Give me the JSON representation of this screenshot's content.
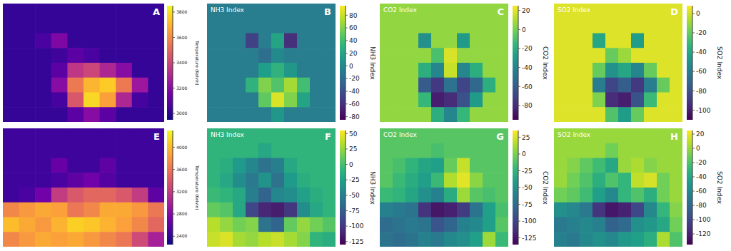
{
  "chart_data": [
    {
      "type": "heatmap",
      "label": "A",
      "color": "plasma",
      "tick_labels": false,
      "colorbar": {
        "label": "Temperature (Kelvin)",
        "range": [
          2950,
          3850
        ],
        "ticks": [
          3000,
          3200,
          3400,
          3600,
          3800
        ]
      },
      "cells": [
        [
          3020,
          3020,
          3020,
          3020,
          3020,
          3020,
          3020,
          3020,
          3020,
          3020
        ],
        [
          3020,
          3020,
          3020,
          3020,
          3020,
          3020,
          3020,
          3020,
          3020,
          3020
        ],
        [
          3020,
          3020,
          3060,
          3180,
          3020,
          3020,
          3020,
          3020,
          3020,
          3020
        ],
        [
          3020,
          3020,
          3020,
          3040,
          3100,
          3060,
          3020,
          3020,
          3020,
          3020
        ],
        [
          3020,
          3020,
          3020,
          3100,
          3350,
          3400,
          3300,
          3200,
          3020,
          3020
        ],
        [
          3020,
          3020,
          3020,
          3200,
          3550,
          3700,
          3750,
          3550,
          3250,
          3020
        ],
        [
          3020,
          3020,
          3020,
          3050,
          3450,
          3780,
          3650,
          3300,
          3050,
          3020
        ],
        [
          3020,
          3020,
          3020,
          3020,
          3100,
          3200,
          3100,
          3020,
          3020,
          3020
        ]
      ]
    },
    {
      "type": "heatmap",
      "label": "B",
      "title": "NH3 Index",
      "color": "viridis",
      "tick_labels": false,
      "colorbar": {
        "label": "NH3 Index",
        "range": [
          -85,
          95
        ],
        "ticks": [
          -80,
          -60,
          -40,
          -20,
          0,
          20,
          40,
          60,
          80
        ]
      },
      "cells": [
        [
          -8,
          -8,
          -8,
          -8,
          -8,
          -8,
          -8,
          -8,
          -8,
          -8
        ],
        [
          -8,
          -8,
          -8,
          -8,
          -8,
          -8,
          -8,
          -8,
          -8,
          -8
        ],
        [
          -8,
          -8,
          -8,
          -50,
          -8,
          20,
          -60,
          -8,
          -8,
          -8
        ],
        [
          -8,
          -8,
          -8,
          -8,
          -20,
          0,
          -8,
          -8,
          -8,
          -8
        ],
        [
          -8,
          -8,
          -8,
          -8,
          15,
          30,
          10,
          -8,
          -8,
          -8
        ],
        [
          -8,
          -8,
          -8,
          30,
          60,
          45,
          70,
          40,
          -8,
          -8
        ],
        [
          -8,
          -8,
          -8,
          -8,
          50,
          85,
          60,
          20,
          -8,
          -8
        ],
        [
          -8,
          -8,
          -8,
          -8,
          -8,
          10,
          -8,
          -8,
          -8,
          -8
        ]
      ]
    },
    {
      "type": "heatmap",
      "label": "C",
      "title": "CO2 Index",
      "color": "viridis",
      "tick_labels": false,
      "colorbar": {
        "label": "CO2 Index",
        "range": [
          -95,
          25
        ],
        "ticks": [
          -80,
          -60,
          -40,
          -20,
          0,
          20
        ]
      },
      "cells": [
        [
          5,
          5,
          5,
          5,
          5,
          5,
          5,
          5,
          5,
          5
        ],
        [
          5,
          5,
          5,
          5,
          5,
          5,
          5,
          5,
          5,
          5
        ],
        [
          5,
          5,
          5,
          -35,
          5,
          5,
          -30,
          5,
          5,
          5
        ],
        [
          5,
          5,
          5,
          5,
          -10,
          18,
          5,
          5,
          5,
          5
        ],
        [
          5,
          5,
          5,
          -20,
          -40,
          15,
          -40,
          -20,
          5,
          5
        ],
        [
          5,
          5,
          5,
          -60,
          -75,
          -50,
          -70,
          -55,
          -20,
          5
        ],
        [
          5,
          5,
          5,
          -15,
          -85,
          -80,
          -65,
          -30,
          5,
          5
        ],
        [
          5,
          5,
          5,
          5,
          -20,
          -40,
          -15,
          5,
          5,
          5
        ]
      ]
    },
    {
      "type": "heatmap",
      "label": "D",
      "title": "SO2 Index",
      "color": "viridis",
      "tick_labels": false,
      "colorbar": {
        "label": "SO2 Index",
        "range": [
          -110,
          8
        ],
        "ticks": [
          -100,
          -80,
          -60,
          -40,
          -20,
          0
        ]
      },
      "cells": [
        [
          2,
          2,
          2,
          2,
          2,
          2,
          2,
          2,
          2,
          2
        ],
        [
          2,
          2,
          2,
          2,
          2,
          2,
          2,
          2,
          2,
          2
        ],
        [
          2,
          2,
          2,
          -40,
          2,
          2,
          -45,
          2,
          2,
          2
        ],
        [
          2,
          2,
          2,
          2,
          -20,
          -10,
          2,
          2,
          2,
          2
        ],
        [
          2,
          2,
          2,
          -20,
          -50,
          -40,
          -55,
          -20,
          2,
          2
        ],
        [
          2,
          2,
          2,
          -60,
          -85,
          -75,
          -90,
          -60,
          -20,
          2
        ],
        [
          2,
          2,
          2,
          -15,
          -95,
          -100,
          -80,
          -30,
          2,
          2
        ],
        [
          2,
          2,
          2,
          2,
          -25,
          -45,
          -20,
          2,
          2,
          2
        ]
      ]
    },
    {
      "type": "heatmap",
      "label": "E",
      "color": "plasma",
      "tick_labels": false,
      "colorbar": {
        "label": "Temperature (Kelvin)",
        "range": [
          2250,
          4300
        ],
        "ticks": [
          2400,
          2800,
          3200,
          3600,
          4000
        ]
      },
      "cells": [
        [
          2450,
          2450,
          2450,
          2450,
          2450,
          2450,
          2450,
          2450,
          2450,
          2450
        ],
        [
          2450,
          2450,
          2450,
          2450,
          2450,
          2450,
          2450,
          2450,
          2450,
          2450
        ],
        [
          2450,
          2450,
          2450,
          2650,
          2450,
          2450,
          2600,
          2450,
          2450,
          2450
        ],
        [
          2450,
          2450,
          2450,
          2500,
          2600,
          2700,
          2550,
          2450,
          2450,
          2450
        ],
        [
          2450,
          2500,
          2700,
          3200,
          3400,
          3500,
          3500,
          3400,
          3200,
          2600
        ],
        [
          3700,
          3800,
          3900,
          3850,
          3600,
          3700,
          3900,
          3900,
          3800,
          3600
        ],
        [
          4000,
          3900,
          3800,
          3950,
          4100,
          4050,
          3950,
          3850,
          3700,
          3500
        ],
        [
          3700,
          3800,
          3900,
          3850,
          3900,
          3800,
          3700,
          3600,
          3300,
          3000
        ]
      ]
    },
    {
      "type": "heatmap",
      "label": "F",
      "title": "NH3 Index",
      "color": "viridis",
      "tick_labels": false,
      "colorbar": {
        "label": "NH3 Index",
        "range": [
          -130,
          55
        ],
        "ticks": [
          -125,
          -100,
          -75,
          -50,
          -25,
          0,
          25,
          50
        ]
      },
      "cells": [
        [
          -10,
          -10,
          -10,
          -10,
          -10,
          -10,
          -10,
          -10,
          -10,
          -10
        ],
        [
          -10,
          -10,
          -10,
          -10,
          -20,
          -10,
          -10,
          -10,
          -10,
          -10
        ],
        [
          -10,
          -15,
          -30,
          -45,
          -60,
          -50,
          -20,
          -10,
          -10,
          -10
        ],
        [
          -10,
          -20,
          -40,
          -55,
          -35,
          -60,
          -30,
          -15,
          -10,
          -10
        ],
        [
          -5,
          -10,
          -20,
          -50,
          -70,
          -45,
          -40,
          -25,
          -15,
          -10
        ],
        [
          10,
          5,
          -20,
          -90,
          -110,
          -115,
          -100,
          -40,
          -20,
          -10
        ],
        [
          35,
          25,
          15,
          20,
          -60,
          -70,
          10,
          25,
          15,
          5
        ],
        [
          40,
          45,
          30,
          25,
          35,
          40,
          30,
          20,
          -10,
          -15
        ]
      ]
    },
    {
      "type": "heatmap",
      "label": "G",
      "title": "CO2 Index",
      "color": "viridis",
      "tick_labels": false,
      "colorbar": {
        "label": "CO2 Index",
        "range": [
          -135,
          35
        ],
        "ticks": [
          -125,
          -100,
          -75,
          -50,
          -25,
          0,
          25
        ]
      },
      "cells": [
        [
          -10,
          -10,
          -10,
          -10,
          -10,
          -10,
          -10,
          -10,
          -10,
          -10
        ],
        [
          -10,
          -10,
          -10,
          -10,
          -15,
          -10,
          -10,
          -10,
          -10,
          -10
        ],
        [
          -10,
          -15,
          -25,
          -35,
          -40,
          -5,
          20,
          -10,
          -10,
          -10
        ],
        [
          -10,
          -20,
          -30,
          -40,
          -20,
          15,
          28,
          5,
          -10,
          -10
        ],
        [
          -20,
          -25,
          -35,
          -50,
          -60,
          -30,
          10,
          -10,
          -15,
          -10
        ],
        [
          -60,
          -65,
          -70,
          -110,
          -125,
          -120,
          -105,
          -70,
          -40,
          -15
        ],
        [
          -75,
          -70,
          -65,
          -70,
          -90,
          -80,
          -60,
          -55,
          -40,
          -10
        ],
        [
          -70,
          -75,
          -70,
          -60,
          -65,
          -55,
          -50,
          -40,
          10,
          -20
        ]
      ]
    },
    {
      "type": "heatmap",
      "label": "H",
      "title": "SO2 Index",
      "color": "viridis",
      "tick_labels": false,
      "colorbar": {
        "label": "SO2 Index",
        "range": [
          -135,
          25
        ],
        "ticks": [
          -120,
          -100,
          -80,
          -60,
          -40,
          -20,
          0,
          20
        ]
      },
      "cells": [
        [
          0,
          0,
          0,
          0,
          0,
          0,
          0,
          0,
          0,
          0
        ],
        [
          0,
          0,
          0,
          0,
          -10,
          0,
          0,
          0,
          0,
          0
        ],
        [
          0,
          -5,
          -15,
          -25,
          -40,
          0,
          5,
          -5,
          0,
          0
        ],
        [
          0,
          -10,
          -20,
          -35,
          -20,
          -30,
          10,
          15,
          -10,
          0
        ],
        [
          -10,
          -15,
          -25,
          -45,
          -60,
          -30,
          -20,
          -35,
          -10,
          0
        ],
        [
          -55,
          -60,
          -70,
          -110,
          -125,
          -120,
          -100,
          -60,
          -30,
          -5
        ],
        [
          -70,
          -65,
          -60,
          -65,
          -85,
          -80,
          -55,
          -50,
          -40,
          -10
        ],
        [
          -65,
          -70,
          -60,
          -55,
          -60,
          -50,
          -45,
          -35,
          5,
          -20
        ]
      ]
    }
  ]
}
